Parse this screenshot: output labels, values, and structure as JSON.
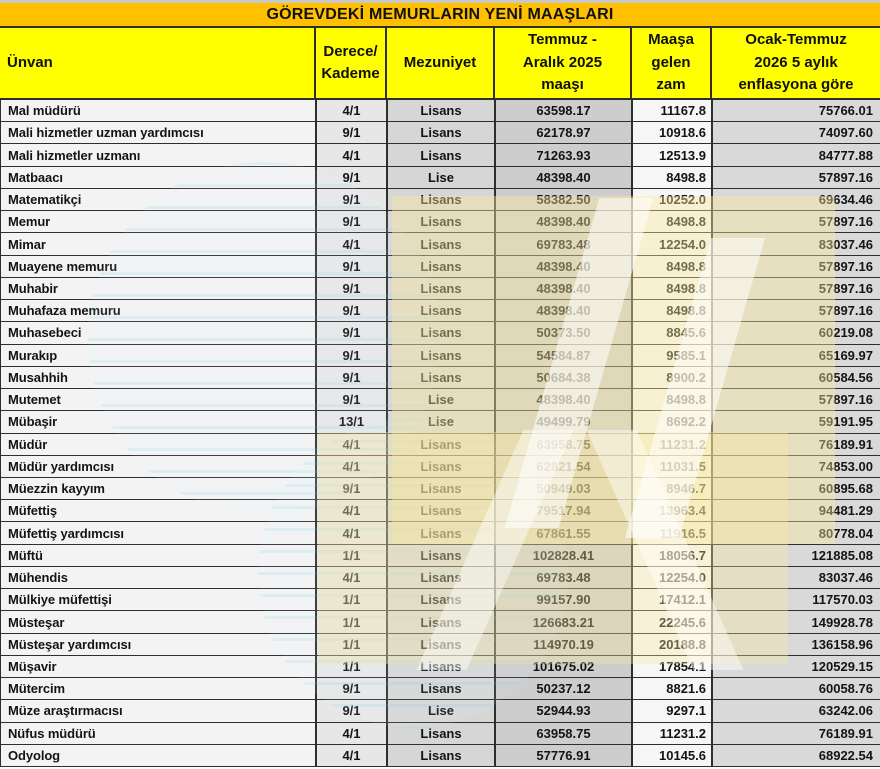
{
  "title": "GÖREVDEKİ MEMURLARIN YENİ MAAŞLARI",
  "header": {
    "labels": [
      "Ünvan",
      "Derece/\nKademe",
      "Mezuniyet",
      "Temmuz -\nAralık 2025\nmaaşı",
      "Maaşa\ngelen\nzam",
      "Ocak-Temmuz\n2026 5 aylık\nenflasyona göre"
    ]
  },
  "chart_data": {
    "type": "table",
    "title": "GÖREVDEKİ MEMURLARIN YENİ MAAŞLARI",
    "columns": [
      "Ünvan",
      "Derece/Kademe",
      "Mezuniyet",
      "Temmuz - Aralık 2025 maaşı",
      "Maaşa gelen zam",
      "Ocak-Temmuz 2026 5 aylık enflasyona göre"
    ],
    "rows": [
      [
        "Mal müdürü",
        "4/1",
        "Lisans",
        "63598.17",
        "11167.8",
        "75766.01"
      ],
      [
        "Mali hizmetler uzman yardımcısı",
        "9/1",
        "Lisans",
        "62178.97",
        "10918.6",
        "74097.60"
      ],
      [
        "Mali hizmetler uzmanı",
        "4/1",
        "Lisans",
        "71263.93",
        "12513.9",
        "84777.88"
      ],
      [
        "Matbaacı",
        "9/1",
        "Lise",
        "48398.40",
        "8498.8",
        "57897.16"
      ],
      [
        "Matematikçi",
        "9/1",
        "Lisans",
        "58382.50",
        "10252.0",
        "69634.46"
      ],
      [
        "Memur",
        "9/1",
        "Lisans",
        "48398.40",
        "8498.8",
        "57897.16"
      ],
      [
        "Mimar",
        "4/1",
        "Lisans",
        "69783.48",
        "12254.0",
        "83037.46"
      ],
      [
        "Muayene memuru",
        "9/1",
        "Lisans",
        "48398.40",
        "8498.8",
        "57897.16"
      ],
      [
        "Muhabir",
        "9/1",
        "Lisans",
        "48398.40",
        "8498.8",
        "57897.16"
      ],
      [
        "Muhafaza memuru",
        "9/1",
        "Lisans",
        "48398.40",
        "8498.8",
        "57897.16"
      ],
      [
        "Muhasebeci",
        "9/1",
        "Lisans",
        "50373.50",
        "8845.6",
        "60219.08"
      ],
      [
        "Murakıp",
        "9/1",
        "Lisans",
        "54584.87",
        "9585.1",
        "65169.97"
      ],
      [
        "Musahhih",
        "9/1",
        "Lisans",
        "50684.38",
        "8900.2",
        "60584.56"
      ],
      [
        "Mutemet",
        "9/1",
        "Lise",
        "48398.40",
        "8498.8",
        "57897.16"
      ],
      [
        "Mübaşir",
        "13/1",
        "Lise",
        "49499.79",
        "8692.2",
        "59191.95"
      ],
      [
        "Müdür",
        "4/1",
        "Lisans",
        "63958.75",
        "11231.2",
        "76189.91"
      ],
      [
        "Müdür yardımcısı",
        "4/1",
        "Lisans",
        "62821.54",
        "11031.5",
        "74853.00"
      ],
      [
        "Müezzin kayyım",
        "9/1",
        "Lisans",
        "50949.03",
        "8946.7",
        "60895.68"
      ],
      [
        "Müfettiş",
        "4/1",
        "Lisans",
        "79517.94",
        "13963.4",
        "94481.29"
      ],
      [
        "Müfettiş yardımcısı",
        "4/1",
        "Lisans",
        "67861.55",
        "11916.5",
        "80778.04"
      ],
      [
        "Müftü",
        "1/1",
        "Lisans",
        "102828.41",
        "18056.7",
        "121885.08"
      ],
      [
        "Mühendis",
        "4/1",
        "Lisans",
        "69783.48",
        "12254.0",
        "83037.46"
      ],
      [
        "Mülkiye müfettişi",
        "1/1",
        "Lisans",
        "99157.90",
        "17412.1",
        "117570.03"
      ],
      [
        "Müsteşar",
        "1/1",
        "Lisans",
        "126683.21",
        "22245.6",
        "149928.78"
      ],
      [
        "Müsteşar yardımcısı",
        "1/1",
        "Lisans",
        "114970.19",
        "20188.8",
        "136158.96"
      ],
      [
        "Müşavir",
        "1/1",
        "Lisans",
        "101675.02",
        "17854.1",
        "120529.15"
      ],
      [
        "Mütercim",
        "9/1",
        "Lisans",
        "50237.12",
        "8821.6",
        "60058.76"
      ],
      [
        "Müze araştırmacısı",
        "9/1",
        "Lise",
        "52944.93",
        "9297.1",
        "63242.06"
      ],
      [
        "Nüfus müdürü",
        "4/1",
        "Lisans",
        "63958.75",
        "11231.2",
        "76189.91"
      ],
      [
        "Odyolog",
        "4/1",
        "Lisans",
        "57776.91",
        "10145.6",
        "68922.54"
      ]
    ]
  },
  "watermark": {
    "name": "ntv-logo-watermark"
  },
  "colors": {
    "title_bar_bg": "#FFC000",
    "header_bg": "#FFFF00",
    "grid_border": "#2e2e2e",
    "text": "#141414",
    "top_strip": "#c9c9c9",
    "column_backgrounds": {
      "unvan": "#f3f3f3",
      "derece": "#e7e7e7",
      "mezuniyet": "#d6d6d6",
      "maas": "#cdcdcd",
      "zam": "#f6f6f6",
      "son": "#d9d9d9"
    },
    "watermark_cyan": "#96d7f0",
    "watermark_cream": "#f9e79e"
  }
}
